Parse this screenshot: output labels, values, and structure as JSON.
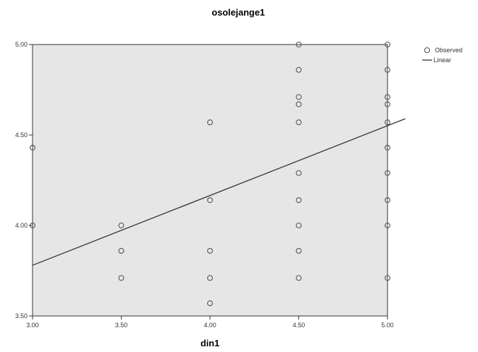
{
  "chart_data": {
    "type": "scatter",
    "title": "osolejange1",
    "xlabel": "din1",
    "ylabel": "",
    "xlim": [
      3.0,
      5.0
    ],
    "ylim": [
      3.5,
      5.0
    ],
    "x_ticks": [
      "3.00",
      "3.50",
      "4.00",
      "4.50",
      "5.00"
    ],
    "y_ticks": [
      "3.50",
      "4.00",
      "4.50",
      "5.00"
    ],
    "grid": false,
    "legend_position": "top-right",
    "legend": [
      "Observed",
      "Linear"
    ],
    "series": [
      {
        "name": "Observed",
        "kind": "points",
        "x": [
          3.0,
          3.0,
          3.5,
          3.5,
          3.5,
          4.0,
          4.0,
          4.0,
          4.0,
          4.0,
          4.5,
          4.5,
          4.5,
          4.5,
          4.5,
          4.5,
          4.5,
          4.5,
          4.5,
          4.5,
          5.0,
          5.0,
          5.0,
          5.0,
          5.0,
          5.0,
          5.0,
          5.0,
          5.0,
          5.0
        ],
        "y": [
          4.43,
          4.0,
          4.0,
          3.86,
          3.71,
          4.57,
          4.14,
          3.86,
          3.71,
          3.57,
          5.0,
          4.86,
          4.71,
          4.67,
          4.57,
          4.29,
          4.14,
          4.0,
          3.86,
          3.71,
          5.0,
          4.86,
          4.71,
          4.67,
          4.57,
          4.43,
          4.29,
          4.14,
          4.0,
          3.71
        ]
      },
      {
        "name": "Linear",
        "kind": "line",
        "x": [
          3.0,
          5.1
        ],
        "y": [
          3.78,
          4.59
        ]
      }
    ],
    "colors": {
      "plot_background": "#e6e6e6",
      "marker": "#555555",
      "line": "#333333",
      "axis": "#333333"
    }
  }
}
